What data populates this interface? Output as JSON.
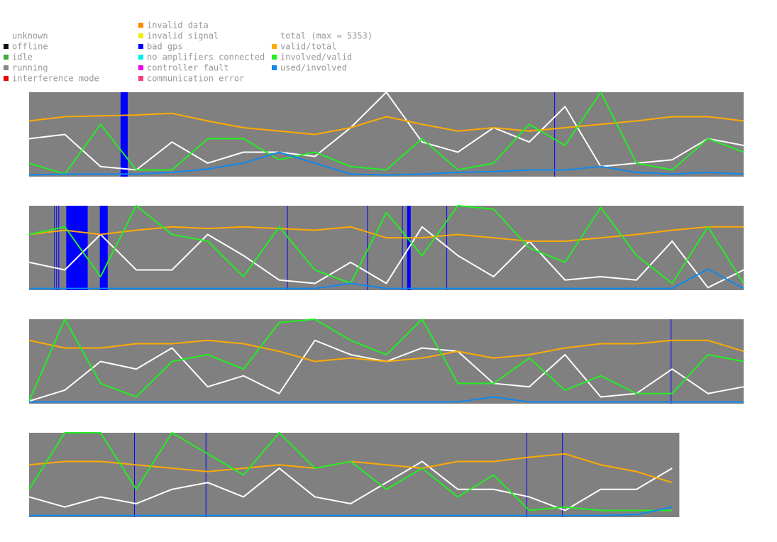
{
  "legend": {
    "columns": [
      [
        {
          "name": "unknown",
          "color": "#ffffff"
        },
        {
          "name": "offline",
          "color": "#111111"
        },
        {
          "name": "idle",
          "color": "#44aa44"
        },
        {
          "name": "running",
          "color": "#888888"
        },
        {
          "name": "interference mode",
          "color": "#ee0000"
        }
      ],
      [
        {
          "name": "invalid data",
          "color": "#ff8800"
        },
        {
          "name": "invalid signal",
          "color": "#eeee00"
        },
        {
          "name": "bad gps",
          "color": "#0000ff"
        },
        {
          "name": "no amplifiers connected",
          "color": "#00eeee"
        },
        {
          "name": "controller fault",
          "color": "#ee00ee"
        },
        {
          "name": "communication error",
          "color": "#ee4477"
        }
      ],
      [
        {
          "name": "total (max = 5353)",
          "color": "#ffffff"
        },
        {
          "name": "valid/total",
          "color": "#ffaa00"
        },
        {
          "name": "involved/valid",
          "color": "#22ee22"
        },
        {
          "name": "used/involved",
          "color": "#1188ee"
        }
      ]
    ]
  },
  "chart_data": [
    {
      "type": "line",
      "xlim": [
        0,
        100
      ],
      "ylim": [
        0,
        1
      ],
      "x": [
        0,
        5,
        10,
        15,
        20,
        25,
        30,
        35,
        40,
        45,
        50,
        55,
        60,
        65,
        70,
        75,
        80,
        85,
        90,
        95,
        100
      ],
      "bad_gps": [
        [
          12.8,
          13.8
        ],
        [
          73.5,
          73.5
        ]
      ],
      "series": [
        {
          "color": "#ffffff",
          "values": [
            0.45,
            0.5,
            0.12,
            0.08,
            0.41,
            0.16,
            0.29,
            0.29,
            0.24,
            0.58,
            1.0,
            0.41,
            0.29,
            0.58,
            0.41,
            0.83,
            0.12,
            0.16,
            0.2,
            0.45,
            0.37
          ]
        },
        {
          "color": "#ffaa00",
          "values": [
            0.66,
            0.71,
            0.72,
            0.73,
            0.75,
            0.66,
            0.58,
            0.54,
            0.5,
            0.58,
            0.71,
            0.62,
            0.54,
            0.58,
            0.54,
            0.58,
            0.62,
            0.66,
            0.71,
            0.71,
            0.66
          ]
        },
        {
          "color": "#22ee22",
          "values": [
            0.16,
            0.03,
            0.62,
            0.08,
            0.08,
            0.45,
            0.45,
            0.2,
            0.29,
            0.12,
            0.08,
            0.45,
            0.08,
            0.16,
            0.62,
            0.37,
            1.0,
            0.16,
            0.08,
            0.45,
            0.29
          ]
        },
        {
          "color": "#1188ee",
          "values": [
            0.02,
            0.03,
            0.03,
            0.03,
            0.05,
            0.09,
            0.16,
            0.29,
            0.16,
            0.03,
            0.02,
            0.03,
            0.05,
            0.06,
            0.08,
            0.08,
            0.12,
            0.05,
            0.03,
            0.05,
            0.03
          ]
        }
      ]
    },
    {
      "type": "line",
      "xlim": [
        0,
        100
      ],
      "ylim": [
        0,
        1
      ],
      "x": [
        0,
        5,
        10,
        15,
        20,
        25,
        30,
        35,
        40,
        45,
        50,
        55,
        60,
        65,
        70,
        75,
        80,
        85,
        90,
        95,
        100
      ],
      "bad_gps": [
        [
          3.5,
          3.6
        ],
        [
          3.8,
          3.9
        ],
        [
          4.1,
          4.2
        ],
        [
          5.2,
          8.2
        ],
        [
          9.9,
          11.0
        ],
        [
          36.1,
          36.1
        ],
        [
          47.3,
          47.3
        ],
        [
          52.2,
          52.2
        ],
        [
          52.9,
          53.4
        ],
        [
          58.4,
          58.4
        ]
      ],
      "series": [
        {
          "color": "#ffffff",
          "values": [
            0.33,
            0.24,
            0.66,
            0.24,
            0.24,
            0.66,
            0.41,
            0.12,
            0.08,
            0.33,
            0.08,
            0.75,
            0.41,
            0.16,
            0.58,
            0.12,
            0.16,
            0.12,
            0.58,
            0.03,
            0.24
          ]
        },
        {
          "color": "#ffaa00",
          "values": [
            0.66,
            0.71,
            0.66,
            0.71,
            0.75,
            0.73,
            0.75,
            0.73,
            0.71,
            0.75,
            0.62,
            0.62,
            0.66,
            0.62,
            0.58,
            0.58,
            0.62,
            0.66,
            0.71,
            0.75,
            0.75
          ]
        },
        {
          "color": "#22ee22",
          "values": [
            0.66,
            0.75,
            0.16,
            1.0,
            0.66,
            0.58,
            0.16,
            0.75,
            0.24,
            0.08,
            0.92,
            0.41,
            1.0,
            0.96,
            0.5,
            0.33,
            0.98,
            0.41,
            0.08,
            0.75,
            0.08
          ]
        },
        {
          "color": "#1188ee",
          "values": [
            0.02,
            0.02,
            0.02,
            0.02,
            0.02,
            0.02,
            0.02,
            0.02,
            0.02,
            0.08,
            0.02,
            0.02,
            0.02,
            0.02,
            0.02,
            0.02,
            0.02,
            0.02,
            0.02,
            0.25,
            0.02
          ]
        }
      ]
    },
    {
      "type": "line",
      "xlim": [
        0,
        100
      ],
      "ylim": [
        0,
        1
      ],
      "x": [
        0,
        5,
        10,
        15,
        20,
        25,
        30,
        35,
        40,
        45,
        50,
        55,
        60,
        65,
        70,
        75,
        80,
        85,
        90,
        95,
        100
      ],
      "bad_gps": [
        [
          89.8,
          89.8
        ]
      ],
      "series": [
        {
          "color": "#ffffff",
          "values": [
            0.03,
            0.16,
            0.5,
            0.41,
            0.66,
            0.2,
            0.33,
            0.12,
            0.75,
            0.58,
            0.5,
            0.66,
            0.62,
            0.24,
            0.2,
            0.58,
            0.08,
            0.12,
            0.41,
            0.12,
            0.2
          ]
        },
        {
          "color": "#ffaa00",
          "values": [
            0.75,
            0.66,
            0.66,
            0.71,
            0.71,
            0.75,
            0.71,
            0.62,
            0.5,
            0.54,
            0.5,
            0.54,
            0.62,
            0.54,
            0.58,
            0.66,
            0.71,
            0.71,
            0.75,
            0.75,
            0.62
          ]
        },
        {
          "color": "#22ee22",
          "values": [
            0.03,
            1.0,
            0.24,
            0.08,
            0.5,
            0.58,
            0.41,
            0.96,
            1.0,
            0.75,
            0.58,
            1.0,
            0.24,
            0.24,
            0.54,
            0.16,
            0.33,
            0.12,
            0.12,
            0.58,
            0.5
          ]
        },
        {
          "color": "#1188ee",
          "values": [
            0.02,
            0.02,
            0.02,
            0.02,
            0.02,
            0.02,
            0.02,
            0.02,
            0.02,
            0.02,
            0.02,
            0.02,
            0.02,
            0.08,
            0.02,
            0.02,
            0.02,
            0.02,
            0.02,
            0.02,
            0.02
          ]
        }
      ]
    },
    {
      "type": "line",
      "xlim": [
        0,
        91
      ],
      "ylim": [
        0,
        1
      ],
      "x": [
        0,
        5,
        10,
        15,
        20,
        25,
        30,
        35,
        40,
        45,
        50,
        55,
        60,
        65,
        70,
        75,
        80,
        85,
        90
      ],
      "bad_gps": [
        [
          14.7,
          14.7
        ],
        [
          24.7,
          24.7
        ],
        [
          69.6,
          69.6
        ],
        [
          74.6,
          74.6
        ]
      ],
      "series": [
        {
          "color": "#ffffff",
          "values": [
            0.24,
            0.12,
            0.24,
            0.16,
            0.33,
            0.41,
            0.24,
            0.58,
            0.24,
            0.16,
            0.41,
            0.66,
            0.33,
            0.33,
            0.24,
            0.08,
            0.33,
            0.33,
            0.58
          ]
        },
        {
          "color": "#ffaa00",
          "values": [
            0.62,
            0.66,
            0.66,
            0.62,
            0.58,
            0.54,
            0.58,
            0.62,
            0.58,
            0.66,
            0.62,
            0.58,
            0.66,
            0.66,
            0.71,
            0.75,
            0.62,
            0.54,
            0.41
          ]
        },
        {
          "color": "#22ee22",
          "values": [
            0.33,
            1.0,
            1.0,
            0.33,
            1.0,
            0.75,
            0.5,
            1.0,
            0.58,
            0.66,
            0.33,
            0.58,
            0.24,
            0.5,
            0.08,
            0.12,
            0.08,
            0.08,
            0.08
          ]
        },
        {
          "color": "#1188ee",
          "values": [
            0.02,
            0.02,
            0.02,
            0.02,
            0.02,
            0.02,
            0.02,
            0.02,
            0.02,
            0.02,
            0.02,
            0.02,
            0.02,
            0.02,
            0.02,
            0.02,
            0.02,
            0.03,
            0.12
          ]
        }
      ]
    }
  ]
}
